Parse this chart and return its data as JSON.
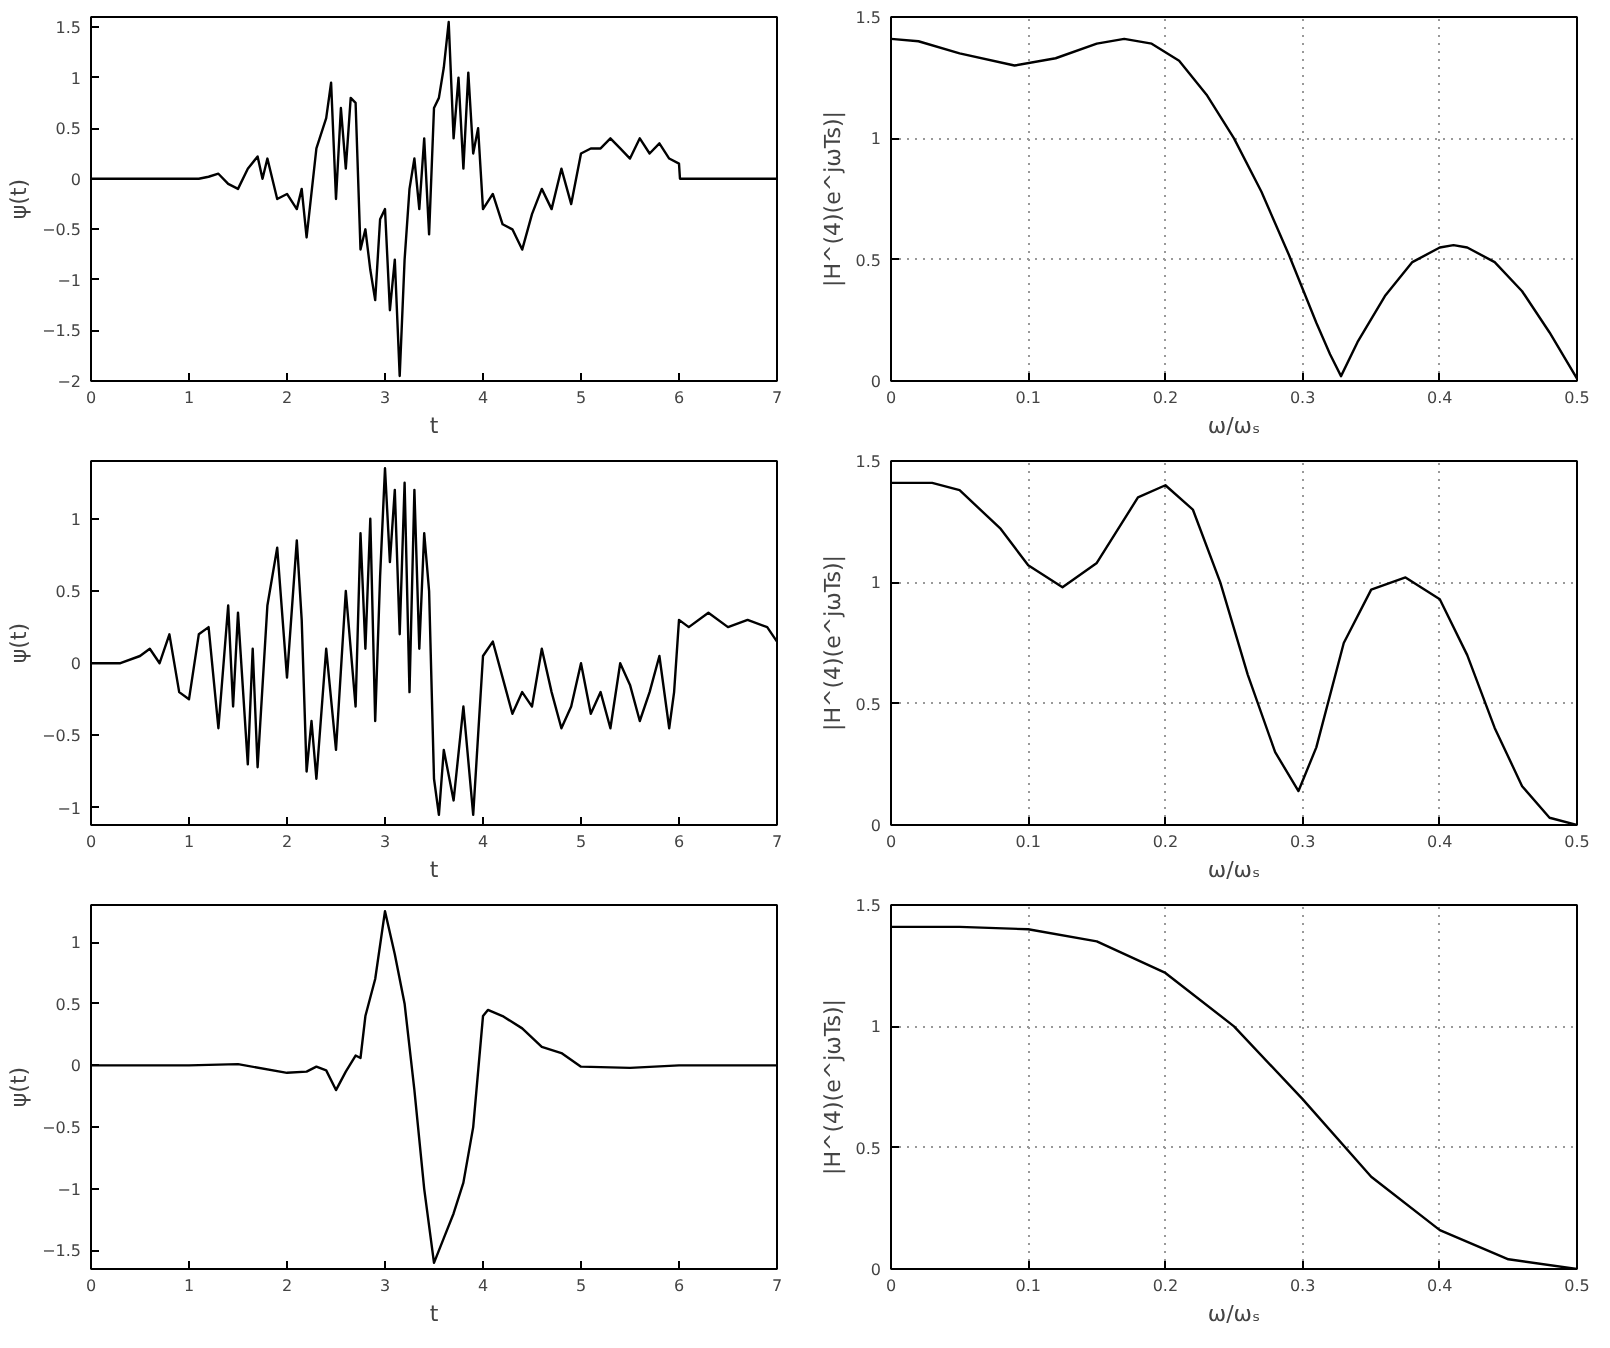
{
  "chart_data": [
    {
      "type": "line",
      "xlabel": "t",
      "ylabel": "ψ(t)",
      "xlim": [
        0,
        7
      ],
      "ylim": [
        -2,
        1.6
      ],
      "xticks": [
        0,
        1,
        2,
        3,
        4,
        5,
        6,
        7
      ],
      "yticks": [
        -2,
        -1.5,
        -1,
        -0.5,
        0,
        0.5,
        1,
        1.5
      ],
      "series": [
        {
          "color": "#000000",
          "x": [
            0,
            1.1,
            1.2,
            1.3,
            1.4,
            1.5,
            1.6,
            1.7,
            1.75,
            1.8,
            1.9,
            2.0,
            2.1,
            2.15,
            2.2,
            2.3,
            2.4,
            2.45,
            2.5,
            2.55,
            2.6,
            2.65,
            2.7,
            2.75,
            2.8,
            2.85,
            2.9,
            2.95,
            3.0,
            3.05,
            3.1,
            3.15,
            3.2,
            3.25,
            3.3,
            3.35,
            3.4,
            3.45,
            3.5,
            3.55,
            3.6,
            3.65,
            3.7,
            3.75,
            3.8,
            3.85,
            3.9,
            3.95,
            4.0,
            4.1,
            4.2,
            4.3,
            4.4,
            4.5,
            4.6,
            4.7,
            4.8,
            4.9,
            5.0,
            5.1,
            5.2,
            5.3,
            5.4,
            5.5,
            5.6,
            5.7,
            5.8,
            5.9,
            6.0,
            6.01,
            7
          ],
          "values": [
            0,
            0,
            0.02,
            0.05,
            -0.05,
            -0.1,
            0.1,
            0.22,
            0,
            0.2,
            -0.2,
            -0.15,
            -0.3,
            -0.1,
            -0.58,
            0.3,
            0.6,
            0.95,
            -0.2,
            0.7,
            0.1,
            0.8,
            0.75,
            -0.7,
            -0.5,
            -0.9,
            -1.2,
            -0.4,
            -0.3,
            -1.3,
            -0.8,
            -1.95,
            -0.8,
            -0.1,
            0.2,
            -0.3,
            0.4,
            -0.55,
            0.7,
            0.8,
            1.1,
            1.55,
            0.4,
            1.0,
            0.1,
            1.05,
            0.25,
            0.5,
            -0.3,
            -0.15,
            -0.45,
            -0.5,
            -0.7,
            -0.35,
            -0.1,
            -0.3,
            0.1,
            -0.25,
            0.25,
            0.3,
            0.3,
            0.4,
            0.3,
            0.2,
            0.4,
            0.25,
            0.35,
            0.2,
            0.15,
            0,
            0
          ]
        }
      ]
    },
    {
      "type": "line",
      "xlabel": "ω/ωₛ",
      "ylabel": "|H^(4)(e^jωTs)|",
      "xlim": [
        0,
        0.5
      ],
      "ylim": [
        0,
        1.5
      ],
      "xticks": [
        0,
        0.1,
        0.2,
        0.3,
        0.4,
        0.5
      ],
      "yticks": [
        0,
        0.5,
        1,
        1.5
      ],
      "grid": true,
      "series": [
        {
          "color": "#000000",
          "x": [
            0,
            0.02,
            0.05,
            0.09,
            0.12,
            0.15,
            0.17,
            0.19,
            0.21,
            0.23,
            0.25,
            0.27,
            0.29,
            0.31,
            0.32,
            0.328,
            0.34,
            0.36,
            0.38,
            0.4,
            0.41,
            0.42,
            0.44,
            0.46,
            0.48,
            0.5
          ],
          "values": [
            1.41,
            1.4,
            1.35,
            1.3,
            1.33,
            1.39,
            1.41,
            1.39,
            1.32,
            1.18,
            1.0,
            0.78,
            0.52,
            0.24,
            0.11,
            0.02,
            0.16,
            0.35,
            0.49,
            0.55,
            0.56,
            0.55,
            0.49,
            0.37,
            0.2,
            0.01
          ]
        }
      ]
    },
    {
      "type": "line",
      "xlabel": "t",
      "ylabel": "ψ(t)",
      "xlim": [
        0,
        7
      ],
      "ylim": [
        -1.12,
        1.4
      ],
      "xticks": [
        0,
        1,
        2,
        3,
        4,
        5,
        6,
        7
      ],
      "yticks": [
        -1,
        -0.5,
        0,
        0.5,
        1
      ],
      "series": [
        {
          "color": "#000000",
          "x": [
            0,
            0.3,
            0.5,
            0.6,
            0.7,
            0.8,
            0.9,
            1.0,
            1.1,
            1.2,
            1.3,
            1.4,
            1.45,
            1.5,
            1.6,
            1.65,
            1.7,
            1.8,
            1.9,
            2.0,
            2.1,
            2.15,
            2.2,
            2.25,
            2.3,
            2.4,
            2.5,
            2.6,
            2.7,
            2.75,
            2.8,
            2.85,
            2.9,
            2.95,
            3.0,
            3.05,
            3.1,
            3.15,
            3.2,
            3.25,
            3.3,
            3.35,
            3.4,
            3.45,
            3.5,
            3.55,
            3.6,
            3.7,
            3.8,
            3.9,
            3.95,
            4.0,
            4.1,
            4.2,
            4.3,
            4.4,
            4.5,
            4.6,
            4.7,
            4.8,
            4.9,
            5.0,
            5.1,
            5.2,
            5.3,
            5.4,
            5.5,
            5.6,
            5.7,
            5.8,
            5.9,
            5.95,
            6.0,
            6.1,
            6.3,
            6.5,
            6.7,
            6.9,
            7.0
          ],
          "values": [
            0,
            0,
            0.05,
            0.1,
            0,
            0.2,
            -0.2,
            -0.25,
            0.2,
            0.25,
            -0.45,
            0.4,
            -0.3,
            0.35,
            -0.7,
            0.1,
            -0.72,
            0.4,
            0.8,
            -0.1,
            0.85,
            0.3,
            -0.75,
            -0.4,
            -0.8,
            0.1,
            -0.6,
            0.5,
            -0.3,
            0.9,
            0.1,
            1.0,
            -0.4,
            0.6,
            1.35,
            0.7,
            1.2,
            0.2,
            1.25,
            -0.2,
            1.2,
            0.1,
            0.9,
            0.5,
            -0.8,
            -1.05,
            -0.6,
            -0.95,
            -0.3,
            -1.05,
            -0.5,
            0.05,
            0.15,
            -0.1,
            -0.35,
            -0.2,
            -0.3,
            0.1,
            -0.2,
            -0.45,
            -0.3,
            0.0,
            -0.35,
            -0.2,
            -0.45,
            0.0,
            -0.15,
            -0.4,
            -0.2,
            0.05,
            -0.45,
            -0.2,
            0.3,
            0.25,
            0.35,
            0.25,
            0.3,
            0.25,
            0.15
          ]
        }
      ]
    },
    {
      "type": "line",
      "xlabel": "ω/ωₛ",
      "ylabel": "|H^(4)(e^jωTs)|",
      "xlim": [
        0,
        0.5
      ],
      "ylim": [
        0,
        1.5
      ],
      "xticks": [
        0,
        0.1,
        0.2,
        0.3,
        0.4,
        0.5
      ],
      "yticks": [
        0,
        0.5,
        1,
        1.5
      ],
      "grid": true,
      "series": [
        {
          "color": "#000000",
          "x": [
            0,
            0.03,
            0.05,
            0.08,
            0.1,
            0.125,
            0.15,
            0.18,
            0.2,
            0.22,
            0.24,
            0.26,
            0.28,
            0.297,
            0.31,
            0.33,
            0.35,
            0.375,
            0.4,
            0.42,
            0.44,
            0.46,
            0.48,
            0.5
          ],
          "values": [
            1.41,
            1.41,
            1.38,
            1.22,
            1.07,
            0.98,
            1.08,
            1.35,
            1.4,
            1.3,
            1.0,
            0.62,
            0.3,
            0.14,
            0.32,
            0.75,
            0.97,
            1.02,
            0.93,
            0.7,
            0.4,
            0.16,
            0.03,
            0.0
          ]
        }
      ]
    },
    {
      "type": "line",
      "xlabel": "t",
      "ylabel": "ψ(t)",
      "xlim": [
        0,
        7
      ],
      "ylim": [
        -1.65,
        1.3
      ],
      "xticks": [
        0,
        1,
        2,
        3,
        4,
        5,
        6,
        7
      ],
      "yticks": [
        -1.5,
        -1,
        -0.5,
        0,
        0.5,
        1
      ],
      "series": [
        {
          "color": "#000000",
          "x": [
            0,
            1,
            1.5,
            2,
            2.2,
            2.3,
            2.4,
            2.5,
            2.6,
            2.7,
            2.75,
            2.8,
            2.9,
            3.0,
            3.1,
            3.2,
            3.3,
            3.4,
            3.5,
            3.6,
            3.7,
            3.8,
            3.9,
            4.0,
            4.05,
            4.2,
            4.4,
            4.6,
            4.8,
            5.0,
            5.5,
            6,
            7
          ],
          "values": [
            0,
            0,
            0.01,
            -0.06,
            -0.05,
            -0.01,
            -0.04,
            -0.2,
            -0.05,
            0.08,
            0.06,
            0.4,
            0.7,
            1.25,
            0.9,
            0.5,
            -0.2,
            -1.0,
            -1.6,
            -1.4,
            -1.2,
            -0.95,
            -0.5,
            0.4,
            0.45,
            0.4,
            0.3,
            0.15,
            0.1,
            -0.01,
            -0.02,
            0,
            0
          ]
        }
      ]
    },
    {
      "type": "line",
      "xlabel": "ω/ωₛ",
      "ylabel": "|H^(4)(e^jωTs)|",
      "xlim": [
        0,
        0.5
      ],
      "ylim": [
        0,
        1.5
      ],
      "xticks": [
        0,
        0.1,
        0.2,
        0.3,
        0.4,
        0.5
      ],
      "yticks": [
        0,
        0.5,
        1,
        1.5
      ],
      "grid": true,
      "series": [
        {
          "color": "#000000",
          "x": [
            0,
            0.05,
            0.1,
            0.15,
            0.2,
            0.25,
            0.3,
            0.35,
            0.4,
            0.45,
            0.5
          ],
          "values": [
            1.41,
            1.41,
            1.4,
            1.35,
            1.22,
            1.0,
            0.7,
            0.38,
            0.16,
            0.04,
            0.0
          ]
        }
      ]
    }
  ]
}
